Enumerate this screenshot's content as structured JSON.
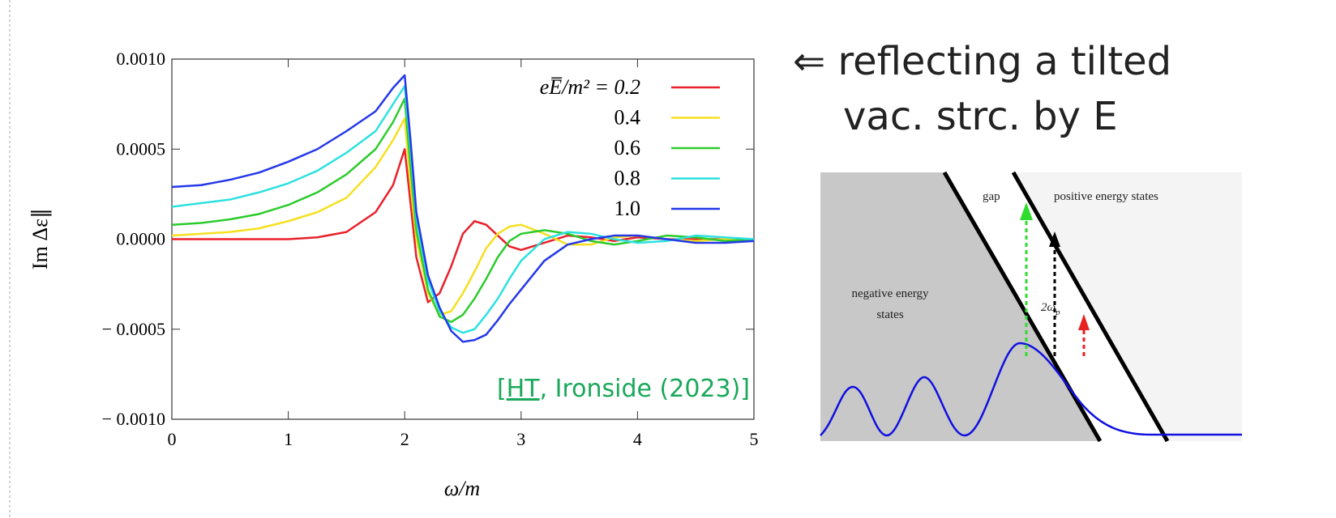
{
  "chart_data": {
    "type": "line",
    "x_label": "ω/m",
    "y_label": "Im Δε∥",
    "x": [
      0,
      0.25,
      0.5,
      0.75,
      1,
      1.25,
      1.5,
      1.75,
      1.9,
      2,
      2.05,
      2.1,
      2.2,
      2.3,
      2.4,
      2.5,
      2.6,
      2.7,
      2.8,
      2.9,
      3.0,
      3.2,
      3.4,
      3.6,
      3.8,
      4.0,
      4.25,
      4.5,
      4.75,
      5
    ],
    "series": [
      {
        "name": "eE̅/m² = 0.2",
        "color": "#e8202a",
        "values": [
          0,
          0,
          0,
          0,
          0,
          1e-05,
          4e-05,
          0.00015,
          0.0003,
          0.0005,
          0.0002,
          -0.0001,
          -0.00035,
          -0.0003,
          -0.00015,
          3e-05,
          0.0001,
          8e-05,
          2e-05,
          -4e-05,
          -6e-05,
          -2e-05,
          2e-05,
          1e-05,
          -1e-05,
          1e-05,
          0,
          0,
          0,
          0
        ]
      },
      {
        "name": "0.4",
        "color": "#f5e020",
        "values": [
          2e-05,
          3e-05,
          4e-05,
          6e-05,
          0.0001,
          0.00015,
          0.00023,
          0.0004,
          0.00055,
          0.00067,
          0.0003,
          0.0,
          -0.0003,
          -0.00042,
          -0.0004,
          -0.0003,
          -0.00018,
          -5e-05,
          3e-05,
          7e-05,
          8e-05,
          3e-05,
          -3e-05,
          -3e-05,
          1e-05,
          2e-05,
          0,
          -1e-05,
          0,
          0
        ]
      },
      {
        "name": "0.6",
        "color": "#2ccb2c",
        "values": [
          8e-05,
          9e-05,
          0.00011,
          0.00014,
          0.00019,
          0.00026,
          0.00036,
          0.0005,
          0.00065,
          0.00078,
          0.0004,
          5e-05,
          -0.00028,
          -0.00043,
          -0.00046,
          -0.00042,
          -0.00033,
          -0.00022,
          -0.0001,
          -1e-05,
          3e-05,
          5e-05,
          3e-05,
          -1e-05,
          -3e-05,
          -1e-05,
          2e-05,
          1e-05,
          -1e-05,
          0
        ]
      },
      {
        "name": "0.8",
        "color": "#2de0e0",
        "values": [
          0.00018,
          0.0002,
          0.00022,
          0.00026,
          0.00031,
          0.00038,
          0.00048,
          0.0006,
          0.00075,
          0.00085,
          0.0005,
          0.00012,
          -0.00023,
          -0.0004,
          -0.00049,
          -0.00052,
          -0.0005,
          -0.00042,
          -0.00033,
          -0.00022,
          -0.00012,
          0.0,
          4e-05,
          3e-05,
          0.0,
          -2e-05,
          -1e-05,
          2e-05,
          1e-05,
          0
        ]
      },
      {
        "name": "1.0",
        "color": "#2438e8",
        "values": [
          0.00029,
          0.0003,
          0.00033,
          0.00037,
          0.00043,
          0.0005,
          0.0006,
          0.00071,
          0.00084,
          0.00091,
          0.00055,
          0.00015,
          -0.0002,
          -0.00038,
          -0.00051,
          -0.00057,
          -0.00056,
          -0.00053,
          -0.00045,
          -0.00036,
          -0.00028,
          -0.00012,
          -3e-05,
          0.0,
          2e-05,
          2e-05,
          0.0,
          -2e-05,
          -2e-05,
          -1e-05
        ]
      }
    ],
    "xlim": [
      0,
      5
    ],
    "xticks": [
      0,
      1,
      2,
      3,
      4,
      5
    ],
    "ylim": [
      -0.001,
      0.001
    ],
    "yticks": [
      {
        "value": -0.001,
        "label": "− 0.0010"
      },
      {
        "value": -0.0005,
        "label": "− 0.0005"
      },
      {
        "value": 0,
        "label": "0.0000"
      },
      {
        "value": 0.0005,
        "label": "0.0005"
      },
      {
        "value": 0.001,
        "label": "0.0010"
      }
    ],
    "legend": "upper right",
    "grid": false
  },
  "citation": {
    "open": "[",
    "author": "HT",
    "rest": ", Ironside (2023)]"
  },
  "side_note": [
    "⇐ reflecting a tilted",
    "vac. strc. by E"
  ],
  "diagram": {
    "gap": "gap",
    "positive": "positive energy states",
    "negative": [
      "negative energy",
      "states"
    ],
    "omega": "2ω",
    "omega_sub": "p"
  }
}
